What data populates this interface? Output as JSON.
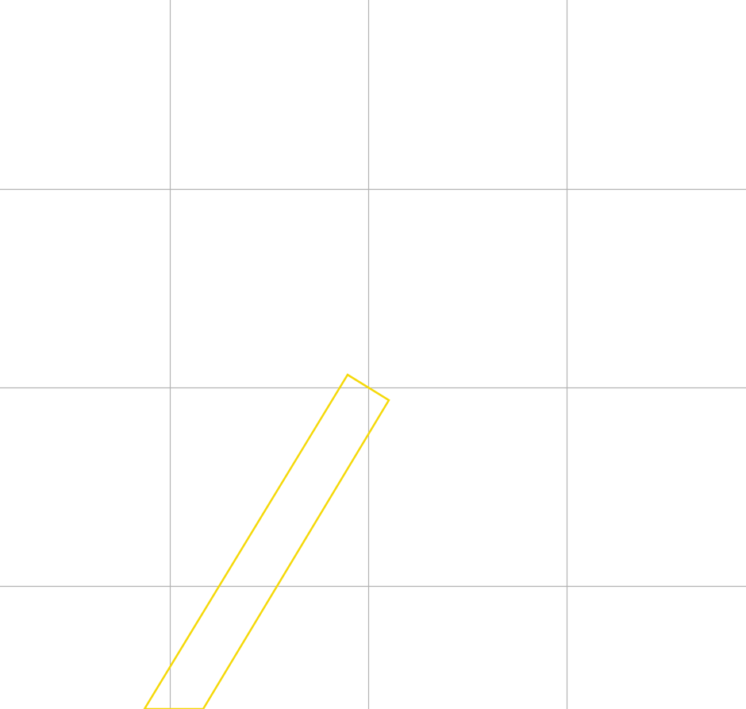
{
  "canvas": {
    "background": "#ffffff",
    "grid_color": "#b3b3b3",
    "shape_stroke_color": "#f5d90a"
  },
  "shape": {
    "kind": "rotated-rectangle-outline"
  }
}
